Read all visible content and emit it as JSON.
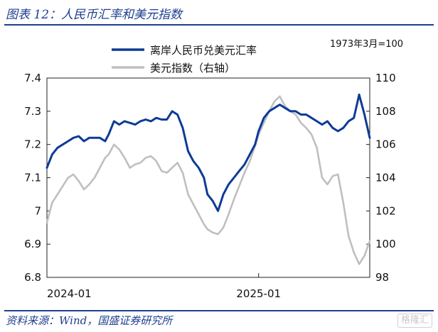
{
  "figure": {
    "title": "图表 12：人民币汇率和美元指数",
    "source": "资料来源：Wind，国盛证券研究所",
    "watermark": "格隆汇"
  },
  "chart_data": {
    "type": "line",
    "title": "人民币汇率和美元指数",
    "note": "1973年3月=100",
    "x_tick_labels": [
      "2024-01",
      "2025-01"
    ],
    "x_range": [
      0,
      18.3
    ],
    "x_unit": "months since 2024-01",
    "left_axis": {
      "ylim": [
        6.8,
        7.4
      ],
      "ticks": [
        "6.8",
        "6.9",
        "7",
        "7.1",
        "7.2",
        "7.3",
        "7.4"
      ]
    },
    "right_axis": {
      "ylim": [
        98,
        110
      ],
      "ticks": [
        "98",
        "100",
        "102",
        "104",
        "106",
        "108",
        "110"
      ]
    },
    "legend_position": "top-center",
    "series": [
      {
        "name": "离岸人民币兑美元汇率",
        "axis": "left",
        "color": "#0d3b96",
        "x": [
          0,
          0.3,
          0.6,
          0.9,
          1.2,
          1.5,
          1.8,
          2.1,
          2.4,
          2.7,
          3.0,
          3.3,
          3.5,
          3.8,
          4.1,
          4.4,
          4.7,
          5.0,
          5.3,
          5.6,
          5.9,
          6.2,
          6.5,
          6.8,
          7.1,
          7.4,
          7.7,
          8.0,
          8.3,
          8.6,
          8.9,
          9.1,
          9.4,
          9.7,
          10.0,
          10.3,
          10.6,
          10.9,
          11.2,
          11.5,
          11.8,
          12.0,
          12.3,
          12.6,
          12.9,
          13.2,
          13.5,
          13.8,
          14.1,
          14.4,
          14.7,
          15.0,
          15.3,
          15.6,
          15.9,
          16.2,
          16.5,
          16.8,
          17.1,
          17.4,
          17.7,
          18.0,
          18.3
        ],
        "values": [
          7.13,
          7.17,
          7.19,
          7.2,
          7.21,
          7.22,
          7.225,
          7.21,
          7.22,
          7.22,
          7.22,
          7.21,
          7.23,
          7.27,
          7.26,
          7.27,
          7.265,
          7.26,
          7.27,
          7.275,
          7.27,
          7.28,
          7.275,
          7.275,
          7.3,
          7.29,
          7.25,
          7.18,
          7.15,
          7.13,
          7.1,
          7.05,
          7.03,
          7.0,
          7.05,
          7.08,
          7.1,
          7.12,
          7.14,
          7.17,
          7.2,
          7.24,
          7.28,
          7.3,
          7.31,
          7.32,
          7.31,
          7.3,
          7.3,
          7.29,
          7.29,
          7.28,
          7.27,
          7.26,
          7.27,
          7.25,
          7.24,
          7.25,
          7.27,
          7.28,
          7.35,
          7.29,
          7.22
        ]
      },
      {
        "name": "美元指数（右轴）",
        "axis": "right",
        "color": "#bfbfbf",
        "x": [
          0,
          0.3,
          0.6,
          0.9,
          1.2,
          1.5,
          1.8,
          2.1,
          2.4,
          2.7,
          3.0,
          3.3,
          3.5,
          3.8,
          4.1,
          4.4,
          4.7,
          5.0,
          5.3,
          5.6,
          5.9,
          6.2,
          6.5,
          6.8,
          7.1,
          7.4,
          7.7,
          8.0,
          8.3,
          8.6,
          8.9,
          9.1,
          9.4,
          9.7,
          10.0,
          10.3,
          10.6,
          10.9,
          11.2,
          11.5,
          11.8,
          12.0,
          12.3,
          12.6,
          12.9,
          13.2,
          13.5,
          13.8,
          14.1,
          14.4,
          14.7,
          15.0,
          15.3,
          15.6,
          15.9,
          16.2,
          16.5,
          16.8,
          17.1,
          17.4,
          17.7,
          18.0,
          18.3
        ],
        "values": [
          101.3,
          102.5,
          103.0,
          103.5,
          104.0,
          104.2,
          103.8,
          103.3,
          103.6,
          104.0,
          104.6,
          105.2,
          105.4,
          106.0,
          105.7,
          105.2,
          104.6,
          104.8,
          104.9,
          105.2,
          105.3,
          105.0,
          104.4,
          104.3,
          104.6,
          104.9,
          104.3,
          103.0,
          102.4,
          101.8,
          101.2,
          100.9,
          100.7,
          100.6,
          101.0,
          101.8,
          102.7,
          103.5,
          104.3,
          105.0,
          105.9,
          106.6,
          107.3,
          108.0,
          108.6,
          108.9,
          108.3,
          108.0,
          107.8,
          107.3,
          107.0,
          106.6,
          105.8,
          104.0,
          103.6,
          104.1,
          104.2,
          102.5,
          100.5,
          99.5,
          98.8,
          99.3,
          100.2
        ]
      }
    ]
  }
}
